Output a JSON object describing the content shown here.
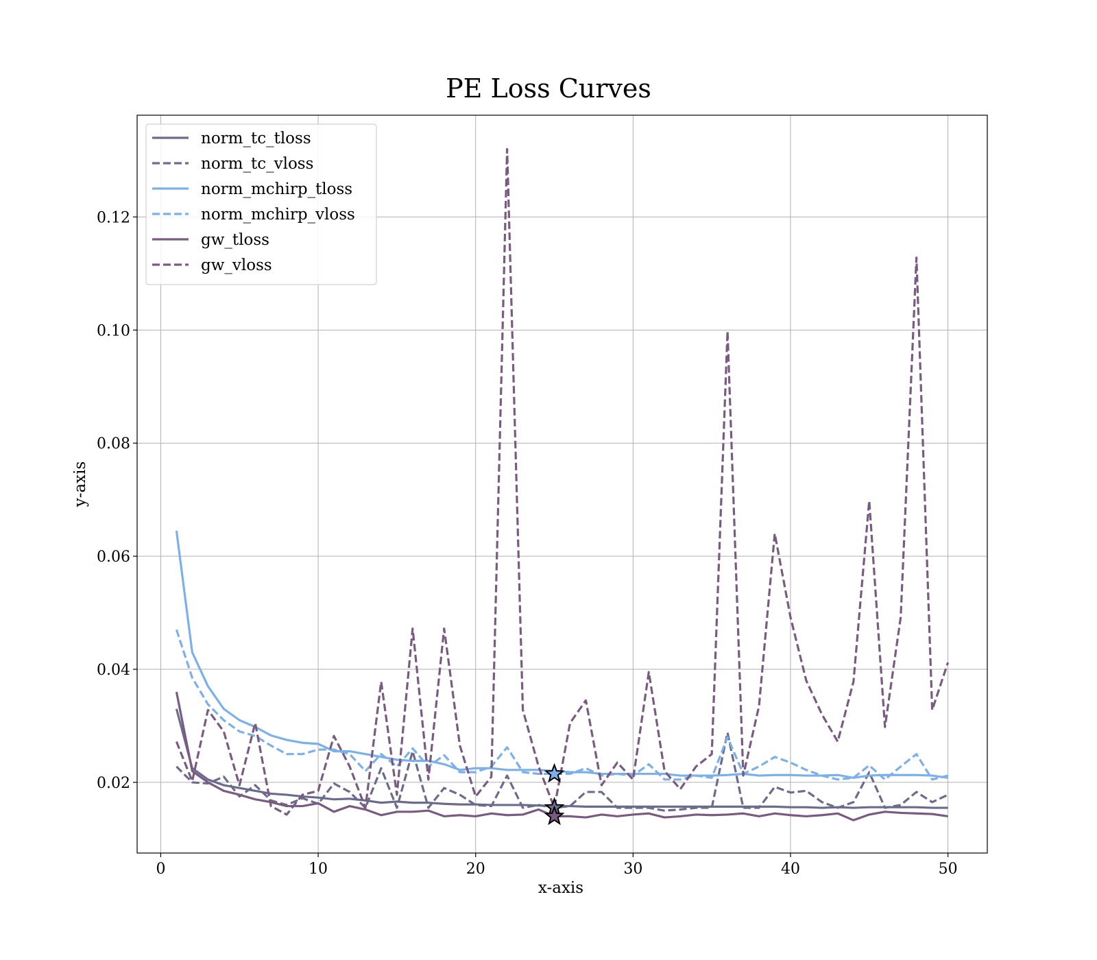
{
  "chart_data": {
    "type": "line",
    "title": "PE Loss Curves",
    "xlabel": "x-axis",
    "ylabel": "y-axis",
    "xlim": [
      -1.5,
      52.5
    ],
    "ylim": [
      0.0075,
      0.138
    ],
    "xticks": [
      0,
      10,
      20,
      30,
      40,
      50
    ],
    "xtick_labels": [
      "0",
      "10",
      "20",
      "30",
      "40",
      "50"
    ],
    "yticks": [
      0.02,
      0.04,
      0.06,
      0.08,
      0.1,
      0.12
    ],
    "ytick_labels": [
      "0.02",
      "0.04",
      "0.06",
      "0.08",
      "0.10",
      "0.12"
    ],
    "grid": true,
    "legend_position": "top-left",
    "x": [
      1,
      2,
      3,
      4,
      5,
      6,
      7,
      8,
      9,
      10,
      11,
      12,
      13,
      14,
      15,
      16,
      17,
      18,
      19,
      20,
      21,
      22,
      23,
      24,
      25,
      26,
      27,
      28,
      29,
      30,
      31,
      32,
      33,
      34,
      35,
      36,
      37,
      38,
      39,
      40,
      41,
      42,
      43,
      44,
      45,
      46,
      47,
      48,
      49,
      50
    ],
    "series": [
      {
        "name": "norm_tc_tloss",
        "color": "#6b6b8e",
        "dash": "solid",
        "values": [
          0.033,
          0.0225,
          0.0205,
          0.0195,
          0.019,
          0.0185,
          0.018,
          0.0178,
          0.0175,
          0.0173,
          0.017,
          0.0171,
          0.0168,
          0.0164,
          0.0166,
          0.0164,
          0.0164,
          0.0162,
          0.0161,
          0.0161,
          0.016,
          0.016,
          0.016,
          0.0159,
          0.0158,
          0.0158,
          0.0157,
          0.0157,
          0.0157,
          0.0157,
          0.0157,
          0.0157,
          0.0157,
          0.0157,
          0.0157,
          0.0157,
          0.0157,
          0.0157,
          0.0157,
          0.0156,
          0.0156,
          0.0155,
          0.0156,
          0.0155,
          0.0156,
          0.0156,
          0.0156,
          0.0156,
          0.0155,
          0.0155
        ]
      },
      {
        "name": "norm_tc_vloss",
        "color": "#6b6b8e",
        "dash": "dashed",
        "values": [
          0.0228,
          0.02,
          0.0198,
          0.021,
          0.0175,
          0.0195,
          0.0168,
          0.016,
          0.0172,
          0.0162,
          0.0198,
          0.0183,
          0.0155,
          0.0225,
          0.0155,
          0.0255,
          0.0155,
          0.019,
          0.0178,
          0.016,
          0.0158,
          0.0212,
          0.0155,
          0.016,
          0.0155,
          0.0158,
          0.0183,
          0.0183,
          0.0155,
          0.0155,
          0.0155,
          0.015,
          0.0152,
          0.0155,
          0.0155,
          0.0288,
          0.0155,
          0.0155,
          0.0192,
          0.0182,
          0.0185,
          0.0165,
          0.0155,
          0.0165,
          0.0218,
          0.0155,
          0.016,
          0.0183,
          0.0165,
          0.0178
        ]
      },
      {
        "name": "norm_mchirp_tloss",
        "color": "#7ab0eb",
        "dash": "solid",
        "values": [
          0.0645,
          0.043,
          0.037,
          0.033,
          0.031,
          0.0298,
          0.0283,
          0.0275,
          0.027,
          0.0268,
          0.0255,
          0.0255,
          0.025,
          0.0245,
          0.024,
          0.0238,
          0.0238,
          0.0232,
          0.0222,
          0.0225,
          0.0225,
          0.0222,
          0.0222,
          0.0222,
          0.022,
          0.0218,
          0.0218,
          0.0215,
          0.0215,
          0.0215,
          0.0215,
          0.0215,
          0.0212,
          0.0212,
          0.0212,
          0.0213,
          0.0215,
          0.0212,
          0.0213,
          0.0213,
          0.0212,
          0.0212,
          0.0213,
          0.0208,
          0.0212,
          0.0213,
          0.0213,
          0.0213,
          0.0212,
          0.0208
        ]
      },
      {
        "name": "norm_mchirp_vloss",
        "color": "#7ab0eb",
        "dash": "dashed",
        "values": [
          0.047,
          0.0385,
          0.0338,
          0.031,
          0.029,
          0.0282,
          0.0265,
          0.025,
          0.025,
          0.0258,
          0.0258,
          0.025,
          0.022,
          0.025,
          0.0228,
          0.026,
          0.0228,
          0.0248,
          0.0218,
          0.0218,
          0.0228,
          0.0262,
          0.0218,
          0.0215,
          0.0215,
          0.0215,
          0.0225,
          0.0212,
          0.0215,
          0.0212,
          0.0232,
          0.0205,
          0.0205,
          0.0212,
          0.0208,
          0.028,
          0.0215,
          0.0228,
          0.0245,
          0.0235,
          0.0222,
          0.0212,
          0.0205,
          0.0208,
          0.023,
          0.0205,
          0.0228,
          0.025,
          0.0205,
          0.0212
        ]
      },
      {
        "name": "gw_tloss",
        "color": "#7a5a80",
        "dash": "solid",
        "values": [
          0.036,
          0.022,
          0.02,
          0.0185,
          0.0178,
          0.017,
          0.0165,
          0.0158,
          0.0158,
          0.0163,
          0.0148,
          0.0158,
          0.0152,
          0.0142,
          0.0148,
          0.0148,
          0.015,
          0.014,
          0.0142,
          0.014,
          0.0145,
          0.0142,
          0.0143,
          0.0152,
          0.014,
          0.014,
          0.0138,
          0.0143,
          0.014,
          0.0143,
          0.0145,
          0.0138,
          0.014,
          0.0143,
          0.0142,
          0.0143,
          0.0145,
          0.014,
          0.0145,
          0.0142,
          0.014,
          0.0142,
          0.0145,
          0.0133,
          0.0143,
          0.0148,
          0.0146,
          0.0145,
          0.0144,
          0.014
        ]
      },
      {
        "name": "gw_vloss",
        "color": "#7a5a80",
        "dash": "dashed",
        "values": [
          0.0272,
          0.0202,
          0.0328,
          0.029,
          0.0195,
          0.0305,
          0.0158,
          0.0143,
          0.0178,
          0.0185,
          0.0282,
          0.0228,
          0.0155,
          0.0378,
          0.0178,
          0.0472,
          0.0205,
          0.0472,
          0.0265,
          0.0175,
          0.021,
          0.132,
          0.0328,
          0.0228,
          0.0155,
          0.0305,
          0.0345,
          0.0195,
          0.0235,
          0.0205,
          0.0395,
          0.022,
          0.0188,
          0.0228,
          0.025,
          0.0998,
          0.0212,
          0.0335,
          0.064,
          0.0492,
          0.038,
          0.032,
          0.0272,
          0.0378,
          0.0698,
          0.0298,
          0.0492,
          0.1128,
          0.0328,
          0.0412
        ]
      }
    ],
    "markers": [
      {
        "series": "norm_mchirp_vloss",
        "x": 25,
        "y": 0.0215,
        "shape": "star"
      },
      {
        "series": "norm_tc_vloss",
        "x": 25,
        "y": 0.0155,
        "shape": "star"
      },
      {
        "series": "gw_tloss",
        "x": 25,
        "y": 0.014,
        "shape": "star"
      }
    ]
  }
}
